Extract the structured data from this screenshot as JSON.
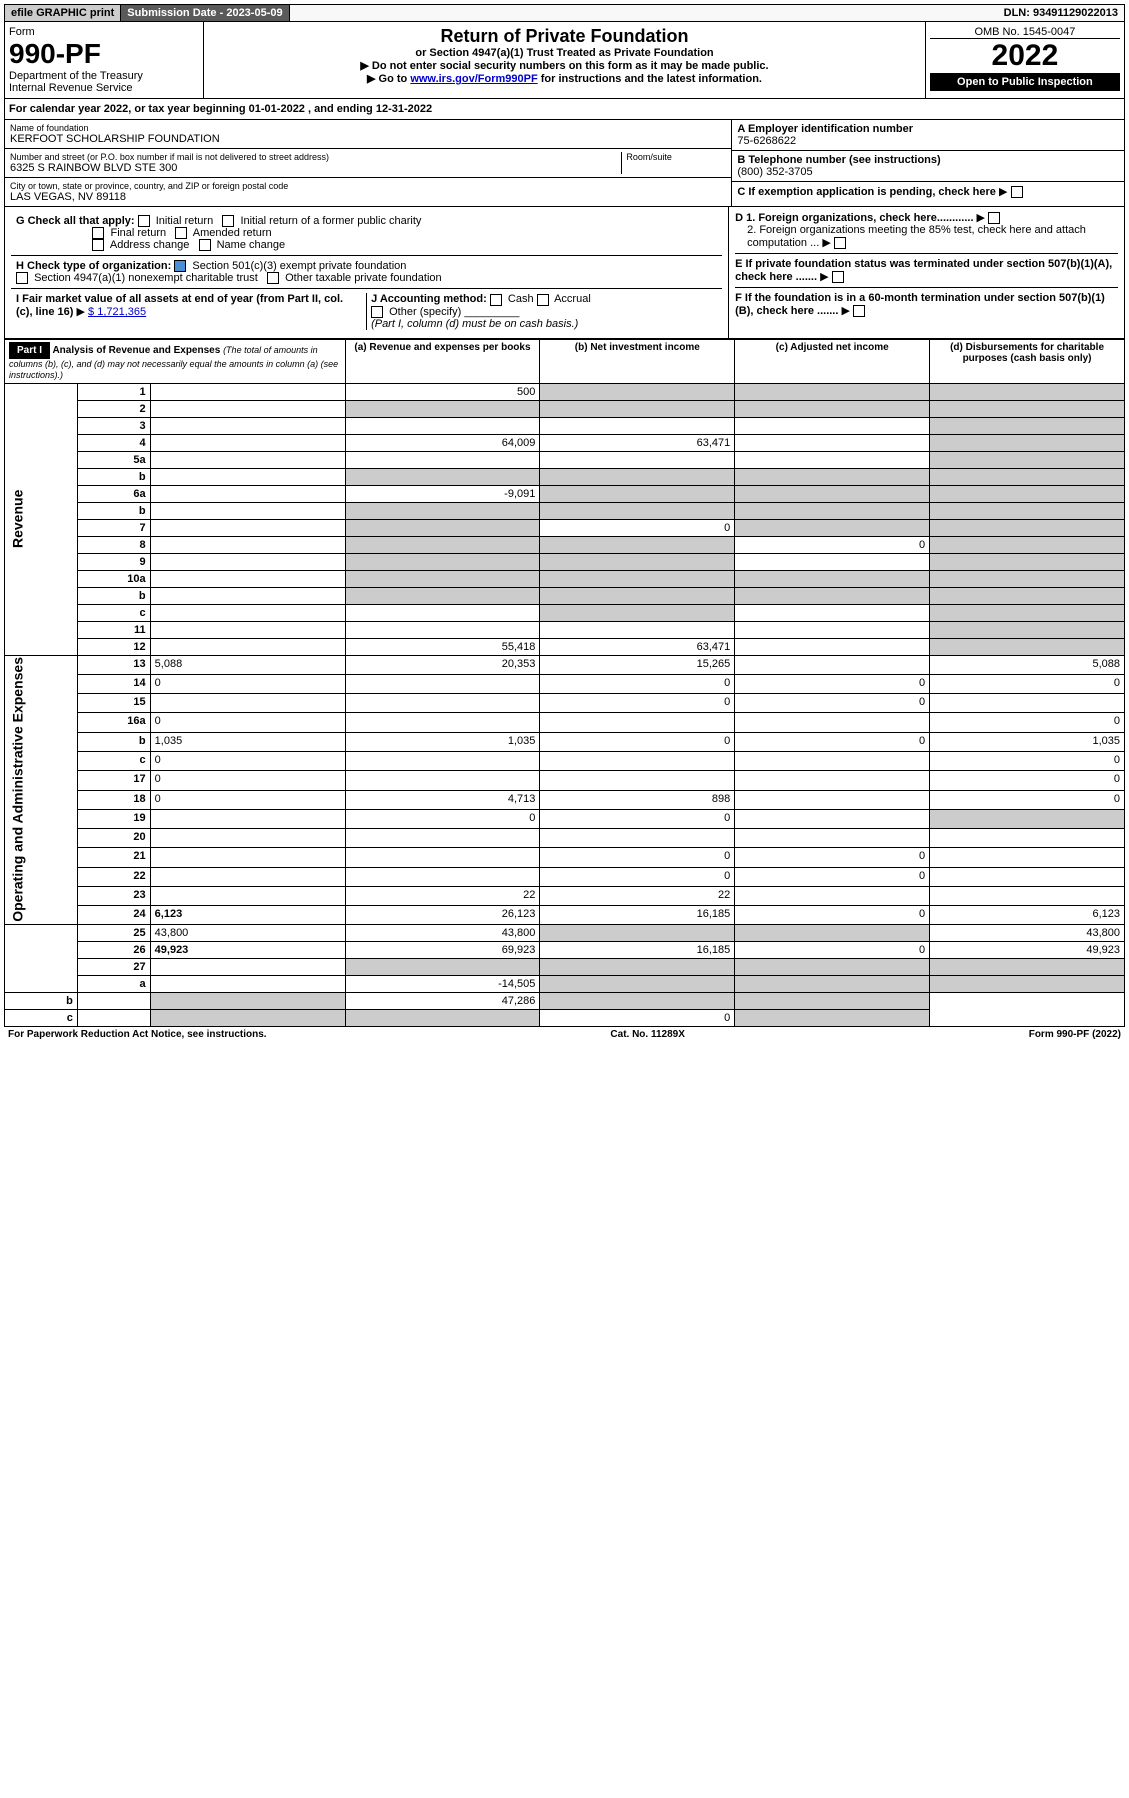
{
  "topbar": {
    "efile": "efile GRAPHIC print",
    "sub_date_label": "Submission Date - ",
    "sub_date": "2023-05-09",
    "dln_label": "DLN: ",
    "dln": "93491129022013"
  },
  "header": {
    "form_label": "Form",
    "form_no": "990-PF",
    "dept": "Department of the Treasury",
    "irs": "Internal Revenue Service",
    "title": "Return of Private Foundation",
    "subtitle": "or Section 4947(a)(1) Trust Treated as Private Foundation",
    "note1": "Do not enter social security numbers on this form as it may be made public.",
    "note2_pre": "Go to ",
    "note2_link": "www.irs.gov/Form990PF",
    "note2_post": " for instructions and the latest information.",
    "omb": "OMB No. 1545-0047",
    "year": "2022",
    "open_pub": "Open to Public Inspection"
  },
  "calyear": {
    "text_pre": "For calendar year 2022, or tax year beginning ",
    "begin": "01-01-2022",
    "mid": " , and ending ",
    "end": "12-31-2022"
  },
  "info": {
    "name_label": "Name of foundation",
    "name": "KERFOOT SCHOLARSHIP FOUNDATION",
    "addr_label": "Number and street (or P.O. box number if mail is not delivered to street address)",
    "addr": "6325 S RAINBOW BLVD STE 300",
    "room_label": "Room/suite",
    "city_label": "City or town, state or province, country, and ZIP or foreign postal code",
    "city": "LAS VEGAS, NV  89118",
    "ein_label": "A Employer identification number",
    "ein": "75-6268622",
    "phone_label": "B Telephone number (see instructions)",
    "phone": "(800) 352-3705",
    "c_label": "C If exemption application is pending, check here",
    "d1": "D 1. Foreign organizations, check here............",
    "d2": "2. Foreign organizations meeting the 85% test, check here and attach computation ...",
    "e_label": "E  If private foundation status was terminated under section 507(b)(1)(A), check here .......",
    "f_label": "F  If the foundation is in a 60-month termination under section 507(b)(1)(B), check here .......",
    "g_label": "G Check all that apply:",
    "g_opts": [
      "Initial return",
      "Final return",
      "Address change",
      "Initial return of a former public charity",
      "Amended return",
      "Name change"
    ],
    "h_label": "H Check type of organization:",
    "h_501c3": "Section 501(c)(3) exempt private foundation",
    "h_4947": "Section 4947(a)(1) nonexempt charitable trust",
    "h_other": "Other taxable private foundation",
    "i_label": "I Fair market value of all assets at end of year (from Part II, col. (c), line 16)",
    "i_val": "$  1,721,365",
    "j_label": "J Accounting method:",
    "j_cash": "Cash",
    "j_accrual": "Accrual",
    "j_other": "Other (specify)",
    "j_note": "(Part I, column (d) must be on cash basis.)"
  },
  "part1": {
    "label": "Part I",
    "title": "Analysis of Revenue and Expenses",
    "title_note": " (The total of amounts in columns (b), (c), and (d) may not necessarily equal the amounts in column (a) (see instructions).)",
    "col_a": "(a)   Revenue and expenses per books",
    "col_b": "(b)   Net investment income",
    "col_c": "(c)   Adjusted net income",
    "col_d": "(d)   Disbursements for charitable purposes (cash basis only)"
  },
  "sections": {
    "revenue": "Revenue",
    "expenses": "Operating and Administrative Expenses"
  },
  "rows": [
    {
      "n": "1",
      "d": "",
      "a": "500",
      "b": "",
      "c": "",
      "ga": false,
      "gb": true,
      "gc": true,
      "gd": true
    },
    {
      "n": "2",
      "d": "",
      "a": "",
      "b": "",
      "c": "",
      "ga": true,
      "gb": true,
      "gc": true,
      "gd": true
    },
    {
      "n": "3",
      "d": "",
      "a": "",
      "b": "",
      "c": "",
      "ga": false,
      "gb": false,
      "gc": false,
      "gd": true
    },
    {
      "n": "4",
      "d": "",
      "a": "64,009",
      "b": "63,471",
      "c": "",
      "ga": false,
      "gb": false,
      "gc": false,
      "gd": true
    },
    {
      "n": "5a",
      "d": "",
      "a": "",
      "b": "",
      "c": "",
      "ga": false,
      "gb": false,
      "gc": false,
      "gd": true
    },
    {
      "n": "b",
      "d": "",
      "a": "",
      "b": "",
      "c": "",
      "ga": true,
      "gb": true,
      "gc": true,
      "gd": true
    },
    {
      "n": "6a",
      "d": "",
      "a": "-9,091",
      "b": "",
      "c": "",
      "ga": false,
      "gb": true,
      "gc": true,
      "gd": true
    },
    {
      "n": "b",
      "d": "",
      "a": "",
      "b": "",
      "c": "",
      "ga": true,
      "gb": true,
      "gc": true,
      "gd": true
    },
    {
      "n": "7",
      "d": "",
      "a": "",
      "b": "0",
      "c": "",
      "ga": true,
      "gb": false,
      "gc": true,
      "gd": true
    },
    {
      "n": "8",
      "d": "",
      "a": "",
      "b": "",
      "c": "0",
      "ga": true,
      "gb": true,
      "gc": false,
      "gd": true
    },
    {
      "n": "9",
      "d": "",
      "a": "",
      "b": "",
      "c": "",
      "ga": true,
      "gb": true,
      "gc": false,
      "gd": true
    },
    {
      "n": "10a",
      "d": "",
      "a": "",
      "b": "",
      "c": "",
      "ga": true,
      "gb": true,
      "gc": true,
      "gd": true
    },
    {
      "n": "b",
      "d": "",
      "a": "",
      "b": "",
      "c": "",
      "ga": true,
      "gb": true,
      "gc": true,
      "gd": true
    },
    {
      "n": "c",
      "d": "",
      "a": "",
      "b": "",
      "c": "",
      "ga": false,
      "gb": true,
      "gc": false,
      "gd": true
    },
    {
      "n": "11",
      "d": "",
      "a": "",
      "b": "",
      "c": "",
      "ga": false,
      "gb": false,
      "gc": false,
      "gd": true
    },
    {
      "n": "12",
      "d": "",
      "a": "55,418",
      "b": "63,471",
      "c": "",
      "ga": false,
      "gb": false,
      "gc": false,
      "gd": true,
      "bold": true
    },
    {
      "n": "13",
      "d": "5,088",
      "a": "20,353",
      "b": "15,265",
      "c": "",
      "ga": false,
      "gb": false,
      "gc": false,
      "gd": false
    },
    {
      "n": "14",
      "d": "0",
      "a": "",
      "b": "0",
      "c": "0",
      "ga": false,
      "gb": false,
      "gc": false,
      "gd": false
    },
    {
      "n": "15",
      "d": "",
      "a": "",
      "b": "0",
      "c": "0",
      "ga": false,
      "gb": false,
      "gc": false,
      "gd": false
    },
    {
      "n": "16a",
      "d": "0",
      "a": "",
      "b": "",
      "c": "",
      "ga": false,
      "gb": false,
      "gc": false,
      "gd": false
    },
    {
      "n": "b",
      "d": "1,035",
      "a": "1,035",
      "b": "0",
      "c": "0",
      "ga": false,
      "gb": false,
      "gc": false,
      "gd": false
    },
    {
      "n": "c",
      "d": "0",
      "a": "",
      "b": "",
      "c": "",
      "ga": false,
      "gb": false,
      "gc": false,
      "gd": false
    },
    {
      "n": "17",
      "d": "0",
      "a": "",
      "b": "",
      "c": "",
      "ga": false,
      "gb": false,
      "gc": false,
      "gd": false
    },
    {
      "n": "18",
      "d": "0",
      "a": "4,713",
      "b": "898",
      "c": "",
      "ga": false,
      "gb": false,
      "gc": false,
      "gd": false
    },
    {
      "n": "19",
      "d": "",
      "a": "0",
      "b": "0",
      "c": "",
      "ga": false,
      "gb": false,
      "gc": false,
      "gd": true
    },
    {
      "n": "20",
      "d": "",
      "a": "",
      "b": "",
      "c": "",
      "ga": false,
      "gb": false,
      "gc": false,
      "gd": false
    },
    {
      "n": "21",
      "d": "",
      "a": "",
      "b": "0",
      "c": "0",
      "ga": false,
      "gb": false,
      "gc": false,
      "gd": false
    },
    {
      "n": "22",
      "d": "",
      "a": "",
      "b": "0",
      "c": "0",
      "ga": false,
      "gb": false,
      "gc": false,
      "gd": false
    },
    {
      "n": "23",
      "d": "",
      "a": "22",
      "b": "22",
      "c": "",
      "ga": false,
      "gb": false,
      "gc": false,
      "gd": false
    },
    {
      "n": "24",
      "d": "6,123",
      "a": "26,123",
      "b": "16,185",
      "c": "0",
      "ga": false,
      "gb": false,
      "gc": false,
      "gd": false,
      "bold": true
    },
    {
      "n": "25",
      "d": "43,800",
      "a": "43,800",
      "b": "",
      "c": "",
      "ga": false,
      "gb": true,
      "gc": true,
      "gd": false
    },
    {
      "n": "26",
      "d": "49,923",
      "a": "69,923",
      "b": "16,185",
      "c": "0",
      "ga": false,
      "gb": false,
      "gc": false,
      "gd": false,
      "bold": true
    },
    {
      "n": "27",
      "d": "",
      "a": "",
      "b": "",
      "c": "",
      "ga": true,
      "gb": true,
      "gc": true,
      "gd": true
    },
    {
      "n": "a",
      "d": "",
      "a": "-14,505",
      "b": "",
      "c": "",
      "ga": false,
      "gb": true,
      "gc": true,
      "gd": true,
      "bold": true
    },
    {
      "n": "b",
      "d": "",
      "a": "",
      "b": "47,286",
      "c": "",
      "ga": true,
      "gb": false,
      "gc": true,
      "gd": true,
      "bold": true
    },
    {
      "n": "c",
      "d": "",
      "a": "",
      "b": "",
      "c": "0",
      "ga": true,
      "gb": true,
      "gc": false,
      "gd": true,
      "bold": true
    }
  ],
  "footer": {
    "left": "For Paperwork Reduction Act Notice, see instructions.",
    "mid": "Cat. No. 11289X",
    "right": "Form 990-PF (2022)"
  }
}
